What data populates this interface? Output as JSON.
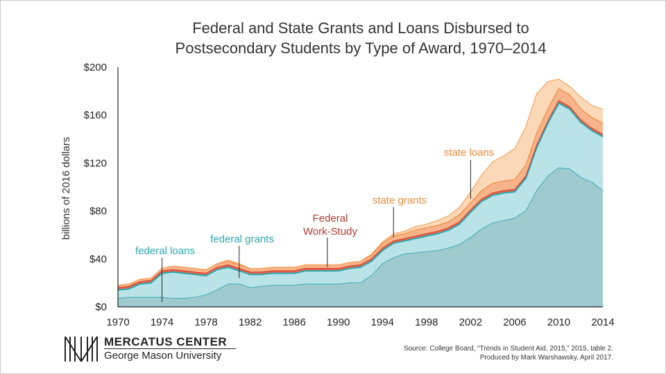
{
  "title_line1": "Federal and State Grants and Loans Disbursed to",
  "title_line2": "Postsecondary Students by Type of Award, 1970–2014",
  "source_line1": "Source: College Board, “Trends in Student Aid, 2015,” 2015, table 2.",
  "source_line2": "Produced by Mark Warshawsky, April 2017.",
  "logo_line1": "MERCATUS CENTER",
  "logo_line2": "George Mason University",
  "colors": {
    "federal_loans": "#9fcbcf",
    "federal_grants": "#b9e3e6",
    "federal_work_study": "#e8634a",
    "state_grants": "#f7b48a",
    "state_loans": "#fbd8b8",
    "federal_loans_label": "#2aa6b4",
    "federal_grants_label": "#2aa6b4",
    "federal_work_study_label": "#b53a2e",
    "state_grants_label": "#ef8a3c",
    "state_loans_label": "#ef8a3c"
  },
  "chart_data": {
    "type": "area",
    "stacked": true,
    "ylabel": "billions of 2016 dollars",
    "xlabel": "",
    "xlim": [
      1970,
      2014
    ],
    "ylim": [
      0,
      200
    ],
    "grid": false,
    "xticks": [
      "1970",
      "1974",
      "1978",
      "1982",
      "1986",
      "1990",
      "1994",
      "1998",
      "2002",
      "2006",
      "2010",
      "2014"
    ],
    "xtick_values": [
      1970,
      1974,
      1978,
      1982,
      1986,
      1990,
      1994,
      1998,
      2002,
      2006,
      2010,
      2014
    ],
    "yticks": [
      "$0",
      "$40",
      "$80",
      "$120",
      "$160",
      "$200"
    ],
    "ytick_values": [
      0,
      40,
      80,
      120,
      160,
      200
    ],
    "x": [
      1970,
      1971,
      1972,
      1973,
      1974,
      1975,
      1976,
      1977,
      1978,
      1979,
      1980,
      1981,
      1982,
      1983,
      1984,
      1985,
      1986,
      1987,
      1988,
      1989,
      1990,
      1991,
      1992,
      1993,
      1994,
      1995,
      1996,
      1997,
      1998,
      1999,
      2000,
      2001,
      2002,
      2003,
      2004,
      2005,
      2006,
      2007,
      2008,
      2009,
      2010,
      2011,
      2012,
      2013,
      2014
    ],
    "series": [
      {
        "name": "federal loans",
        "key": "federal_loans",
        "values": [
          7,
          8,
          8,
          8,
          8,
          7,
          7,
          8,
          10,
          14,
          19,
          19,
          16,
          17,
          18,
          18,
          18,
          19,
          19,
          19,
          19,
          20,
          20,
          26,
          36,
          41,
          44,
          45,
          46,
          47,
          49,
          52,
          58,
          65,
          70,
          72,
          74,
          80,
          97,
          109,
          116,
          115,
          108,
          104,
          97
        ]
      },
      {
        "name": "federal grants",
        "key": "federal_grants",
        "values": [
          7,
          7,
          11,
          12,
          20,
          22,
          21,
          19,
          16,
          17,
          14,
          11,
          11,
          10,
          10,
          10,
          10,
          11,
          11,
          11,
          11,
          12,
          13,
          12,
          11,
          12,
          11,
          12,
          13,
          14,
          15,
          17,
          21,
          23,
          23,
          23,
          22,
          27,
          36,
          44,
          54,
          50,
          46,
          43,
          45
        ]
      },
      {
        "name": "Federal Work-Study",
        "key": "federal_work_study",
        "values": [
          2,
          2,
          2,
          2,
          2,
          2,
          2,
          2,
          2,
          2,
          2,
          2,
          2,
          2,
          2,
          2,
          2,
          2,
          2,
          2,
          2,
          2,
          2,
          2,
          2,
          2,
          2,
          2,
          2,
          2,
          2,
          2,
          2,
          2,
          2,
          2,
          2,
          2,
          2,
          2,
          2,
          2,
          2,
          2,
          2
        ]
      },
      {
        "name": "state grants",
        "key": "state_grants",
        "values": [
          2,
          2,
          2,
          2,
          2,
          3,
          3,
          3,
          3,
          3,
          3,
          3,
          3,
          3,
          3,
          3,
          3,
          3,
          3,
          3,
          3,
          3,
          3,
          3,
          4,
          4,
          4,
          5,
          5,
          5,
          5,
          6,
          6,
          7,
          8,
          8,
          8,
          9,
          10,
          10,
          10,
          10,
          9,
          9,
          9
        ]
      },
      {
        "name": "state loans",
        "key": "state_loans",
        "values": [
          0,
          0,
          0,
          0,
          0,
          0,
          0,
          0,
          0,
          0,
          1,
          1,
          0,
          0,
          0,
          0,
          0,
          0,
          0,
          0,
          0,
          0,
          0,
          1,
          1,
          2,
          2,
          3,
          3,
          4,
          5,
          6,
          9,
          13,
          18,
          21,
          26,
          32,
          33,
          23,
          8,
          7,
          10,
          10,
          12
        ]
      }
    ],
    "annotations": [
      {
        "text": "federal loans",
        "series": "federal_loans",
        "x": 1974,
        "y": 4
      },
      {
        "text": "federal grants",
        "series": "federal_grants",
        "x": 1981,
        "y": 24
      },
      {
        "text": "Federal Work-Study",
        "series": "federal_work_study",
        "x": 1989,
        "y": 33
      },
      {
        "text": "state grants",
        "series": "state_grants",
        "x": 1995,
        "y": 58
      },
      {
        "text": "state loans",
        "series": "state_loans",
        "x": 2002,
        "y": 90
      }
    ]
  }
}
